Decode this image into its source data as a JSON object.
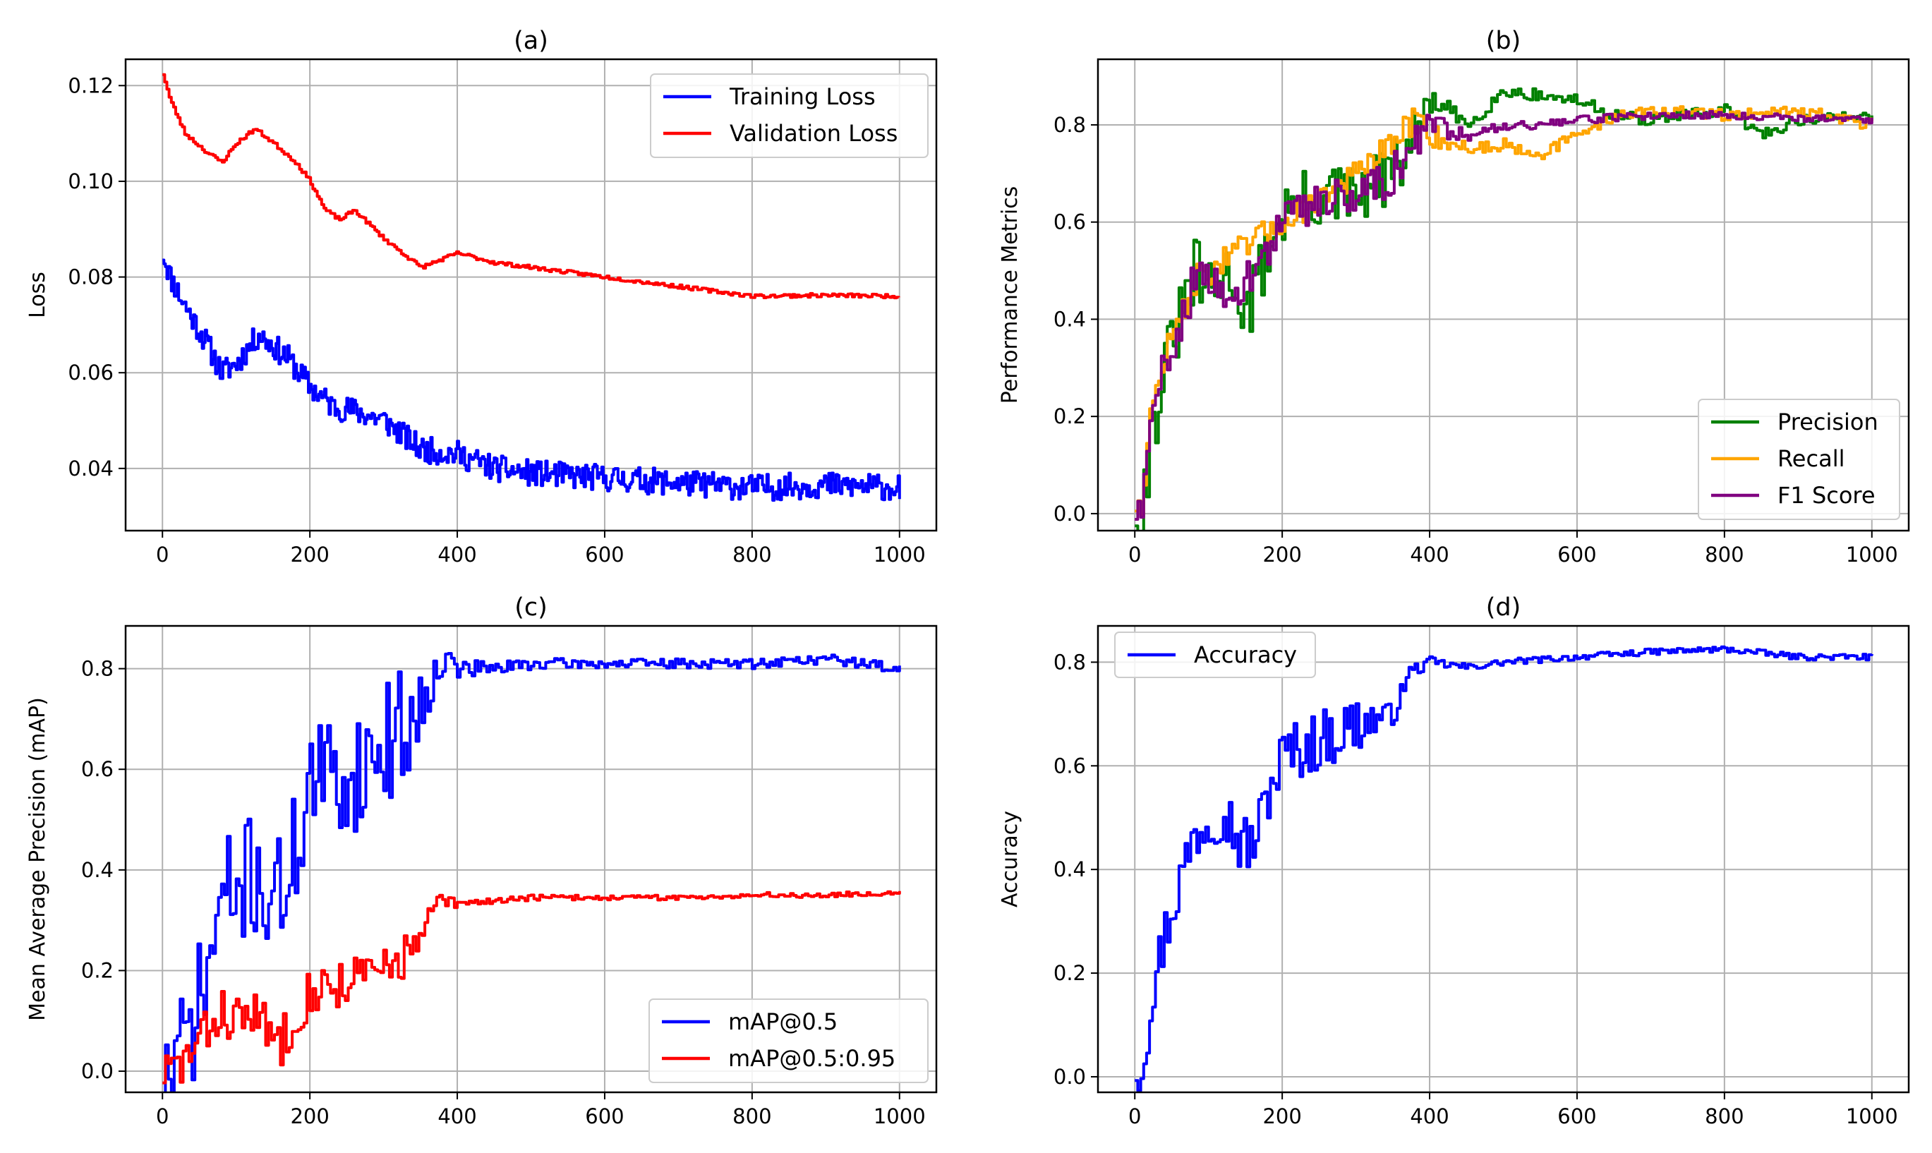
{
  "chart_data": [
    {
      "id": "a",
      "type": "line",
      "title": "(a)",
      "xlabel": "",
      "ylabel": "Loss",
      "xlim": [
        -50,
        1050
      ],
      "ylim": [
        0.027,
        0.1255
      ],
      "xticks": [
        0,
        200,
        400,
        600,
        800,
        1000
      ],
      "xtick_labels": [
        "0",
        "200",
        "400",
        "600",
        "800",
        "1000"
      ],
      "yticks": [
        0.04,
        0.06,
        0.08,
        0.1,
        0.12
      ],
      "ytick_labels": [
        "0.04",
        "0.06",
        "0.08",
        "0.10",
        "0.12"
      ],
      "grid": true,
      "legend_position": "top-right",
      "series": [
        {
          "name": "Training Loss",
          "color": "#0000ff",
          "noise": 0.0028,
          "seed": 11,
          "step": 2,
          "x": [
            0,
            10,
            30,
            60,
            80,
            100,
            130,
            170,
            200,
            230,
            260,
            300,
            350,
            400,
            450,
            500,
            600,
            700,
            800,
            900,
            1000
          ],
          "y": [
            0.085,
            0.08,
            0.074,
            0.066,
            0.06,
            0.062,
            0.068,
            0.063,
            0.057,
            0.053,
            0.052,
            0.05,
            0.044,
            0.043,
            0.04,
            0.039,
            0.038,
            0.037,
            0.036,
            0.0365,
            0.036
          ]
        },
        {
          "name": "Validation Loss",
          "color": "#ff0000",
          "noise": 0.0004,
          "seed": 23,
          "step": 3,
          "x": [
            0,
            10,
            30,
            60,
            80,
            100,
            125,
            150,
            180,
            200,
            220,
            240,
            260,
            300,
            350,
            400,
            450,
            500,
            600,
            700,
            800,
            900,
            1000
          ],
          "y": [
            0.1225,
            0.117,
            0.11,
            0.106,
            0.104,
            0.108,
            0.111,
            0.108,
            0.104,
            0.1,
            0.094,
            0.092,
            0.094,
            0.088,
            0.082,
            0.085,
            0.083,
            0.082,
            0.08,
            0.078,
            0.076,
            0.0762,
            0.076
          ]
        }
      ]
    },
    {
      "id": "b",
      "type": "line",
      "title": "(b)",
      "xlabel": "",
      "ylabel": "Performance Metrics",
      "xlim": [
        -50,
        1050
      ],
      "ylim": [
        -0.035,
        0.935
      ],
      "xticks": [
        0,
        200,
        400,
        600,
        800,
        1000
      ],
      "xtick_labels": [
        "0",
        "200",
        "400",
        "600",
        "800",
        "1000"
      ],
      "yticks": [
        0.0,
        0.2,
        0.4,
        0.6,
        0.8
      ],
      "ytick_labels": [
        "0.0",
        "0.2",
        "0.4",
        "0.6",
        "0.8"
      ],
      "grid": true,
      "legend_position": "bottom-right",
      "series": [
        {
          "name": "Precision",
          "color": "#008000",
          "noise": 0.07,
          "noiseDecay": 360,
          "noiseFloor": 0.012,
          "seed": 31,
          "step": 4,
          "x": [
            0,
            10,
            20,
            40,
            60,
            80,
            100,
            130,
            150,
            180,
            200,
            250,
            300,
            350,
            400,
            450,
            500,
            550,
            600,
            650,
            700,
            800,
            850,
            900,
            1000
          ],
          "y": [
            0.01,
            0.02,
            0.15,
            0.3,
            0.4,
            0.5,
            0.45,
            0.5,
            0.4,
            0.55,
            0.62,
            0.65,
            0.65,
            0.7,
            0.85,
            0.8,
            0.87,
            0.86,
            0.85,
            0.82,
            0.81,
            0.83,
            0.78,
            0.81,
            0.82
          ]
        },
        {
          "name": "Recall",
          "color": "#ffa500",
          "noise": 0.03,
          "noiseDecay": 400,
          "noiseFloor": 0.012,
          "seed": 47,
          "step": 4,
          "x": [
            0,
            10,
            20,
            40,
            60,
            80,
            100,
            150,
            200,
            250,
            300,
            350,
            380,
            400,
            450,
            500,
            550,
            600,
            650,
            700,
            800,
            900,
            1000
          ],
          "y": [
            0.02,
            0.03,
            0.2,
            0.33,
            0.4,
            0.48,
            0.5,
            0.55,
            0.6,
            0.65,
            0.7,
            0.76,
            0.82,
            0.78,
            0.75,
            0.76,
            0.74,
            0.78,
            0.82,
            0.83,
            0.82,
            0.83,
            0.8
          ]
        },
        {
          "name": "F1 Score",
          "color": "#800080",
          "noise": 0.045,
          "noiseDecay": 380,
          "noiseFloor": 0.008,
          "seed": 59,
          "step": 4,
          "x": [
            0,
            10,
            20,
            40,
            60,
            80,
            100,
            150,
            200,
            250,
            300,
            350,
            400,
            450,
            500,
            550,
            600,
            700,
            800,
            900,
            1000
          ],
          "y": [
            0.01,
            0.02,
            0.17,
            0.31,
            0.4,
            0.48,
            0.47,
            0.47,
            0.6,
            0.65,
            0.66,
            0.7,
            0.8,
            0.78,
            0.8,
            0.8,
            0.81,
            0.82,
            0.82,
            0.815,
            0.81
          ]
        }
      ]
    },
    {
      "id": "c",
      "type": "line",
      "title": "(c)",
      "xlabel": "",
      "ylabel": "Mean Average Precision (mAP)",
      "xlim": [
        -50,
        1050
      ],
      "ylim": [
        -0.042,
        0.885
      ],
      "xticks": [
        0,
        200,
        400,
        600,
        800,
        1000
      ],
      "xtick_labels": [
        "0",
        "200",
        "400",
        "600",
        "800",
        "1000"
      ],
      "yticks": [
        0.0,
        0.2,
        0.4,
        0.6,
        0.8
      ],
      "ytick_labels": [
        "0.0",
        "0.2",
        "0.4",
        "0.6",
        "0.8"
      ],
      "grid": true,
      "legend_position": "bottom-right",
      "series": [
        {
          "name": "mAP@0.5",
          "color": "#0000ff",
          "noise": 0.12,
          "noiseDecay": 330,
          "noiseFloor": 0.01,
          "seed": 71,
          "step": 4,
          "x": [
            0,
            10,
            20,
            40,
            60,
            80,
            100,
            120,
            140,
            160,
            180,
            200,
            250,
            300,
            350,
            370,
            400,
            450,
            500,
            600,
            700,
            800,
            900,
            1000
          ],
          "y": [
            0.0,
            0.0,
            0.02,
            0.1,
            0.2,
            0.35,
            0.35,
            0.4,
            0.35,
            0.35,
            0.45,
            0.58,
            0.58,
            0.65,
            0.72,
            0.82,
            0.8,
            0.8,
            0.81,
            0.81,
            0.81,
            0.81,
            0.82,
            0.8
          ]
        },
        {
          "name": "mAP@0.5:0.95",
          "color": "#ff0000",
          "noise": 0.05,
          "noiseDecay": 330,
          "noiseFloor": 0.005,
          "seed": 83,
          "step": 4,
          "x": [
            0,
            10,
            20,
            40,
            60,
            80,
            100,
            120,
            140,
            160,
            180,
            200,
            250,
            300,
            350,
            370,
            400,
            450,
            500,
            600,
            700,
            800,
            900,
            1000
          ],
          "y": [
            0.0,
            0.0,
            0.01,
            0.04,
            0.08,
            0.12,
            0.1,
            0.12,
            0.08,
            0.06,
            0.12,
            0.16,
            0.18,
            0.2,
            0.26,
            0.34,
            0.33,
            0.34,
            0.345,
            0.345,
            0.345,
            0.35,
            0.35,
            0.355
          ]
        }
      ]
    },
    {
      "id": "d",
      "type": "line",
      "title": "(d)",
      "xlabel": "",
      "ylabel": "Accuracy",
      "xlim": [
        -50,
        1050
      ],
      "ylim": [
        -0.03,
        0.87
      ],
      "xticks": [
        0,
        200,
        400,
        600,
        800,
        1000
      ],
      "xtick_labels": [
        "0",
        "200",
        "400",
        "600",
        "800",
        "1000"
      ],
      "yticks": [
        0.0,
        0.2,
        0.4,
        0.6,
        0.8
      ],
      "ytick_labels": [
        "0.0",
        "0.2",
        "0.4",
        "0.6",
        "0.8"
      ],
      "grid": true,
      "legend_position": "top-left",
      "series": [
        {
          "name": "Accuracy",
          "color": "#0000ff",
          "noise": 0.06,
          "noiseDecay": 300,
          "noiseFloor": 0.006,
          "seed": 97,
          "step": 4,
          "x": [
            0,
            10,
            20,
            40,
            60,
            80,
            100,
            120,
            140,
            160,
            180,
            200,
            250,
            300,
            350,
            370,
            400,
            450,
            500,
            600,
            700,
            800,
            900,
            1000
          ],
          "y": [
            0.02,
            0.03,
            0.15,
            0.28,
            0.38,
            0.47,
            0.5,
            0.52,
            0.45,
            0.45,
            0.55,
            0.62,
            0.65,
            0.68,
            0.7,
            0.78,
            0.8,
            0.79,
            0.8,
            0.81,
            0.82,
            0.825,
            0.81,
            0.81
          ]
        }
      ]
    }
  ]
}
